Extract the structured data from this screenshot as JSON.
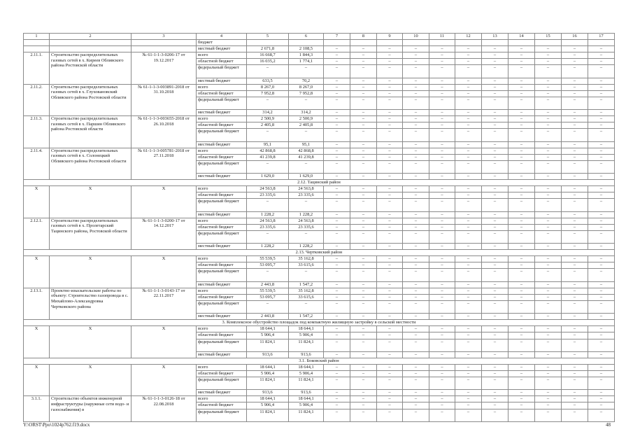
{
  "header": [
    "1",
    "2",
    "3",
    "4",
    "5",
    "6",
    "7",
    "8",
    "9",
    "10",
    "11",
    "12",
    "13",
    "14",
    "15",
    "16",
    "17"
  ],
  "dash": "–",
  "labels": {
    "total": "всего",
    "regional": "областной бюджет",
    "federal": "федеральный бюджет",
    "local": "местный бюджет"
  },
  "continuation": {
    "label_tail": "бюджет",
    "local": {
      "c5": "2 671,8",
      "c6": "2 108,5"
    }
  },
  "body": [
    {
      "type": "block",
      "id": "2.11.1.",
      "name": "Строительство распределительных газовых сетей в х. Киреев Обливского района Ростовской области",
      "doc": "№ 61-1-1-3-0206-17 от 19.12.2017",
      "lines": [
        [
          "total",
          "16 668,7",
          "1 844,3"
        ],
        [
          "regional",
          "16 035,2",
          "1 774,1"
        ],
        [
          "federal",
          "–",
          "–"
        ],
        [
          "local",
          "633,5",
          "70,2"
        ]
      ]
    },
    {
      "type": "block",
      "id": "2.11.2.",
      "name": "Строительство распределительных газовых сетей в х. Глуховановский Обливского района Ростовской области",
      "doc": "№ 61-1-1-3-003891-2018 от 31.10.2018",
      "lines": [
        [
          "total",
          "8 267,0",
          "8 267,0"
        ],
        [
          "regional",
          "7 952,8",
          "7 952,8"
        ],
        [
          "federal",
          "–",
          "–"
        ],
        [
          "local",
          "314,2",
          "314,2"
        ]
      ]
    },
    {
      "type": "block",
      "id": "2.11.3.",
      "name": "Строительство распределительных газовых сетей в х. Паршин Обливского района Ростовской области",
      "doc": "№ 61-1-1-3-003655-2018 от 26.10.2018",
      "lines": [
        [
          "total",
          "2 500,9",
          "2 500,9"
        ],
        [
          "regional",
          "2 405,8",
          "2 405,8"
        ],
        [
          "federal",
          "–",
          "–"
        ],
        [
          "local",
          "95,1",
          "95,1"
        ]
      ]
    },
    {
      "type": "block",
      "id": "2.11.4.",
      "name": "Строительство распределительных газовых сетей в х. Солонецкий Обливского района Ростовской области",
      "doc": "№ 61-1-1-3-005781-2018 от 27.11.2018",
      "lines": [
        [
          "total",
          "42 868,8",
          "42 868,8"
        ],
        [
          "regional",
          "41 239,8",
          "41 239,8"
        ],
        [
          "federal",
          "–",
          "–"
        ],
        [
          "local",
          "1 629,0",
          "1 629,0"
        ]
      ]
    },
    {
      "type": "section",
      "title": "2.12. Тацинский район"
    },
    {
      "type": "block",
      "id": "X",
      "name": "X",
      "doc": "X",
      "lines": [
        [
          "total",
          "24 563,8",
          "24 563,8"
        ],
        [
          "regional",
          "23 335,6",
          "23 335,6"
        ],
        [
          "federal",
          "–",
          "–"
        ],
        [
          "local",
          "1 228,2",
          "1 228,2"
        ]
      ]
    },
    {
      "type": "block",
      "id": "2.12.1.",
      "name": "Строительство распределительных газовых сетей в х. Пролетарский Тацинского района, Ростовской области",
      "doc": "№ 61-1-1-3-0200-17 от 14.12.2017",
      "lines": [
        [
          "total",
          "24 563,8",
          "24 563,8"
        ],
        [
          "regional",
          "23 335,6",
          "23 335,6"
        ],
        [
          "federal",
          "–",
          "–"
        ],
        [
          "local",
          "1 228,2",
          "1 228,2"
        ]
      ]
    },
    {
      "type": "section",
      "title": "2.13. Чертковский район"
    },
    {
      "type": "block",
      "id": "X",
      "name": "X",
      "doc": "X",
      "lines": [
        [
          "total",
          "55 539,5",
          "35 162,8"
        ],
        [
          "regional",
          "53 095,7",
          "33 615,6"
        ],
        [
          "federal",
          "–",
          "–"
        ],
        [
          "local",
          "2 443,8",
          "1 547,2"
        ]
      ]
    },
    {
      "type": "block",
      "id": "2.13.1.",
      "name": "Проектно-изыскательские работы по объекту: Строительство газопровода в с. Михайлово-Александровка Чертковского района",
      "doc": "№ 61-1-1-3-0143-17 от 22.11.2017",
      "lines": [
        [
          "total",
          "55 539,5",
          "35 162,8"
        ],
        [
          "regional",
          "53 095,7",
          "33 615,6"
        ],
        [
          "federal",
          "–",
          "–"
        ],
        [
          "local",
          "2 443,8",
          "1 547,2"
        ]
      ]
    },
    {
      "type": "section",
      "title": "3. Комплексное обустройство площадок под компактную жилищную застройку в сельской местности"
    },
    {
      "type": "block",
      "id": "X",
      "name": "X",
      "doc": "X",
      "lines": [
        [
          "total",
          "18 644,1",
          "18 644,1"
        ],
        [
          "regional",
          "5 906,4",
          "5 906,4"
        ],
        [
          "federal",
          "11 824,1",
          "11 824,1"
        ],
        [
          "local",
          "913,6",
          "913,6"
        ]
      ]
    },
    {
      "type": "section",
      "title": "3.1. Боковский район"
    },
    {
      "type": "block",
      "id": "X",
      "name": "X",
      "doc": "X",
      "lines": [
        [
          "total",
          "18 644,1",
          "18 644,1"
        ],
        [
          "regional",
          "5 906,4",
          "5 906,4"
        ],
        [
          "federal",
          "11 824,1",
          "11 824,1"
        ],
        [
          "local",
          "913,6",
          "913,6"
        ]
      ]
    },
    {
      "type": "block",
      "id": "3.1.1.",
      "name": "Строительство объектов инженерной инфраструктуры (наружные сети водо- и газоснабжения) в",
      "doc": "№ 61-1-1-3-0126-18 от 22.08.2018",
      "lines": [
        [
          "total",
          "18 644,1",
          "18 644,1"
        ],
        [
          "regional",
          "5 906,4",
          "5 906,4"
        ],
        [
          "federal",
          "11 824,1",
          "11 824,1"
        ]
      ]
    }
  ],
  "footer": {
    "path": "Y:\\ORST\\Ppo\\1024p762.f19.docx",
    "page": "48"
  }
}
